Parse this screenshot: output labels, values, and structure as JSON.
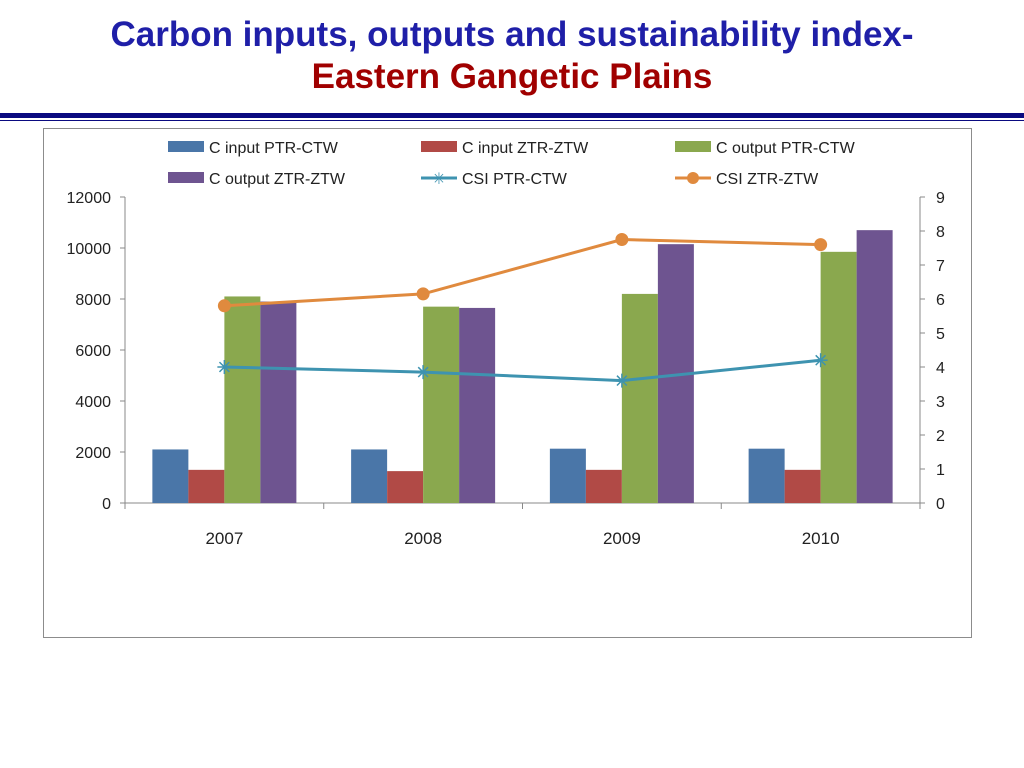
{
  "slide": {
    "title_line1": "Carbon inputs, outputs and sustainability index-",
    "title_line2": "Eastern Gangetic Plains"
  },
  "colors": {
    "title_blue": "#1f1fa8",
    "title_red": "#a00000",
    "rule": "#0a0a80"
  },
  "chart_data": {
    "type": "bar",
    "categories": [
      "2007",
      "2008",
      "2009",
      "2010"
    ],
    "y_left": {
      "min": 0,
      "max": 12000,
      "ticks": [
        0,
        2000,
        4000,
        6000,
        8000,
        10000,
        12000
      ]
    },
    "y_right": {
      "min": 0,
      "max": 9,
      "ticks": [
        0,
        1,
        2,
        3,
        4,
        5,
        6,
        7,
        8,
        9
      ]
    },
    "legend_position": "top",
    "grid": false,
    "series": [
      {
        "name": "C input PTR-CTW",
        "kind": "bar",
        "axis": "left",
        "color": "#4a76a8",
        "values": [
          2100,
          2100,
          2130,
          2130
        ]
      },
      {
        "name": "C input ZTR-ZTW",
        "kind": "bar",
        "axis": "left",
        "color": "#b14a46",
        "values": [
          1300,
          1250,
          1300,
          1300
        ]
      },
      {
        "name": "C output PTR-CTW",
        "kind": "bar",
        "axis": "left",
        "color": "#8aa84e",
        "values": [
          8100,
          7700,
          8200,
          9850
        ]
      },
      {
        "name": "C output ZTR-ZTW",
        "kind": "bar",
        "axis": "left",
        "color": "#6e5490",
        "values": [
          7900,
          7650,
          10150,
          10700
        ]
      },
      {
        "name": "CSI PTR-CTW",
        "kind": "line",
        "axis": "right",
        "marker": "star",
        "color": "#3e93b0",
        "values": [
          4.0,
          3.85,
          3.6,
          4.2
        ]
      },
      {
        "name": "CSI ZTR-ZTW",
        "kind": "line",
        "axis": "right",
        "marker": "circle",
        "color": "#e08a3e",
        "values": [
          5.8,
          6.15,
          7.75,
          7.6
        ]
      }
    ]
  }
}
